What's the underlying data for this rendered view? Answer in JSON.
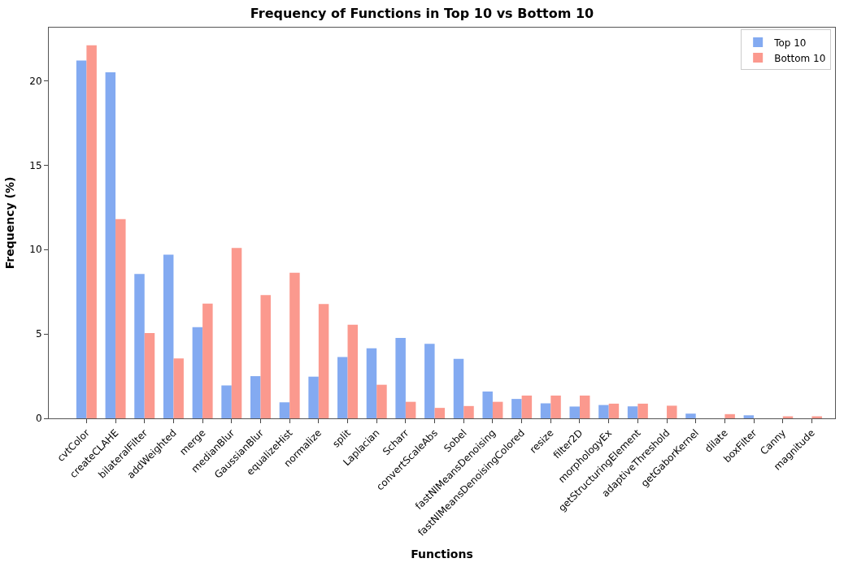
{
  "chart_data": {
    "type": "bar",
    "title": "Frequency of Functions in Top 10 vs Bottom 10",
    "xlabel": "Functions",
    "ylabel": "Frequency (%)",
    "categories": [
      "cvtColor",
      "createCLAHE",
      "bilateralFilter",
      "addWeighted",
      "merge",
      "medianBlur",
      "GaussianBlur",
      "equalizeHist",
      "normalize",
      "split",
      "Laplacian",
      "Scharr",
      "convertScaleAbs",
      "Sobel",
      "fastNlMeansDenoising",
      "fastNlMeansDenoisingColored",
      "resize",
      "filter2D",
      "morphologyEx",
      "getStructuringElement",
      "adaptiveThreshold",
      "getGaborKernel",
      "dilate",
      "boxFilter",
      "Canny",
      "magnitude"
    ],
    "series": [
      {
        "name": "Top 10",
        "color": "#83aaf1",
        "values": [
          21.2,
          20.5,
          8.55,
          9.7,
          5.4,
          1.95,
          2.5,
          0.95,
          2.47,
          3.63,
          4.15,
          4.77,
          4.42,
          3.53,
          1.59,
          1.15,
          0.89,
          0.7,
          0.79,
          0.71,
          0,
          0.28,
          0,
          0.18,
          0,
          0
        ]
      },
      {
        "name": "Bottom 10",
        "color": "#fb998e",
        "values": [
          22.1,
          11.8,
          5.05,
          3.55,
          6.8,
          10.1,
          7.3,
          8.63,
          6.78,
          5.55,
          1.99,
          0.98,
          0.62,
          0.73,
          0.98,
          1.35,
          1.35,
          1.35,
          0.87,
          0.87,
          0.75,
          0,
          0.25,
          0,
          0.12,
          0.12
        ]
      }
    ],
    "ylim": [
      0,
      23.15
    ],
    "yticks": [
      0,
      5,
      10,
      15,
      20
    ],
    "legend": "top right"
  }
}
